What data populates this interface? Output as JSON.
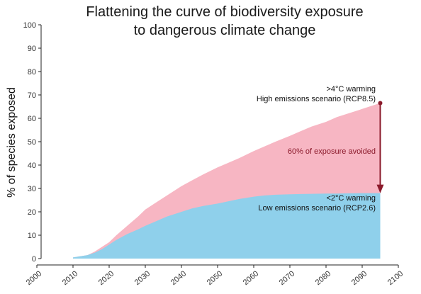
{
  "chart_data": {
    "type": "area",
    "title_line1": "Flattening the curve of biodiversity exposure",
    "title_line2": "to dangerous climate change",
    "xlabel": "",
    "ylabel": "% of species exposed",
    "xlim": [
      2000,
      2100
    ],
    "ylim": [
      0,
      100
    ],
    "x_ticks": [
      2000,
      2010,
      2020,
      2030,
      2040,
      2050,
      2060,
      2070,
      2080,
      2090,
      2100
    ],
    "y_ticks": [
      0,
      10,
      20,
      30,
      40,
      50,
      60,
      70,
      80,
      90,
      100
    ],
    "grid": false,
    "series": [
      {
        "name": "High emissions scenario (RCP8.5)",
        "color": "#f7b6c3",
        "x": [
          2010,
          2014,
          2016,
          2018,
          2020,
          2022,
          2025,
          2028,
          2030,
          2033,
          2036,
          2040,
          2043,
          2046,
          2050,
          2053,
          2056,
          2060,
          2063,
          2066,
          2070,
          2073,
          2076,
          2080,
          2083,
          2086,
          2090,
          2093,
          2095
        ],
        "values": [
          0.5,
          1.5,
          3,
          5,
          7,
          10,
          14,
          18,
          21,
          24,
          27,
          31,
          33.5,
          36,
          39,
          41,
          43,
          46,
          48,
          50,
          52.5,
          54.5,
          56.5,
          58.5,
          60.5,
          62,
          64,
          65.5,
          66.5
        ]
      },
      {
        "name": "Low emissions scenario (RCP2.6)",
        "color": "#8fd0eb",
        "x": [
          2010,
          2014,
          2016,
          2018,
          2020,
          2022,
          2025,
          2028,
          2030,
          2033,
          2036,
          2040,
          2043,
          2046,
          2050,
          2053,
          2056,
          2060,
          2063,
          2066,
          2070,
          2073,
          2076,
          2080,
          2083,
          2086,
          2090,
          2093,
          2095
        ],
        "values": [
          0.5,
          1.5,
          2.5,
          4,
          6,
          8,
          10.5,
          12.5,
          14,
          16,
          18,
          20,
          21.5,
          22.5,
          23.5,
          24.5,
          25.5,
          26.5,
          27,
          27.3,
          27.5,
          27.6,
          27.7,
          27.8,
          27.8,
          27.9,
          28,
          28,
          28
        ]
      }
    ],
    "annotations": {
      "high_line1": ">4°C warming",
      "high_line2": "High emissions scenario (RCP8.5)",
      "low_line1": "<2°C warming",
      "low_line2": "Low emissions scenario (RCP2.6)",
      "avoided": "60% of exposure avoided",
      "arrow_color": "#8b1a2b",
      "arrow_from": [
        2095,
        66.5
      ],
      "arrow_to": [
        2095,
        28
      ]
    }
  }
}
